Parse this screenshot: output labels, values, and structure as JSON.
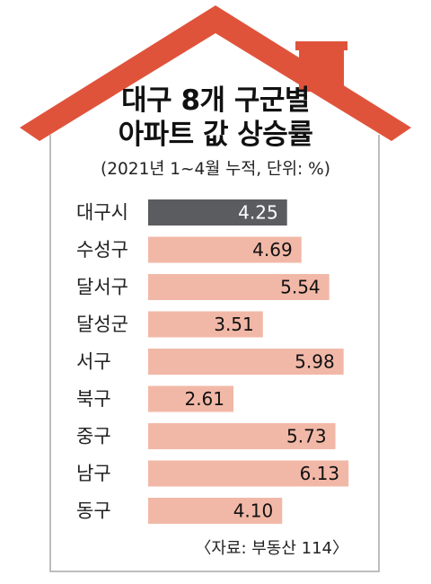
{
  "title_line1": "대구 8개 구군별",
  "title_line2": "아파트 값 상승률",
  "subtitle": "(2021년 1~4월 누적, 단위: %)",
  "source": "〈자료: 부동산 114〉",
  "colors": {
    "roof": "#e0533b",
    "highlight_bar": "#5b5c60",
    "bar": "#f2b8a7",
    "label_text": "#222222",
    "value_text": "#111111",
    "highlight_value_text": "#ffffff"
  },
  "chart_data": {
    "type": "bar",
    "orientation": "horizontal",
    "categories": [
      "대구시",
      "수성구",
      "달서구",
      "달성군",
      "서구",
      "북구",
      "중구",
      "남구",
      "동구"
    ],
    "values": [
      4.25,
      4.69,
      5.54,
      3.51,
      5.98,
      2.61,
      5.73,
      6.13,
      4.1
    ],
    "value_labels": [
      "4.25",
      "4.69",
      "5.54",
      "3.51",
      "5.98",
      "2.61",
      "5.73",
      "6.13",
      "4.10"
    ],
    "highlight_index": 0,
    "grid": false,
    "legend": "none"
  }
}
